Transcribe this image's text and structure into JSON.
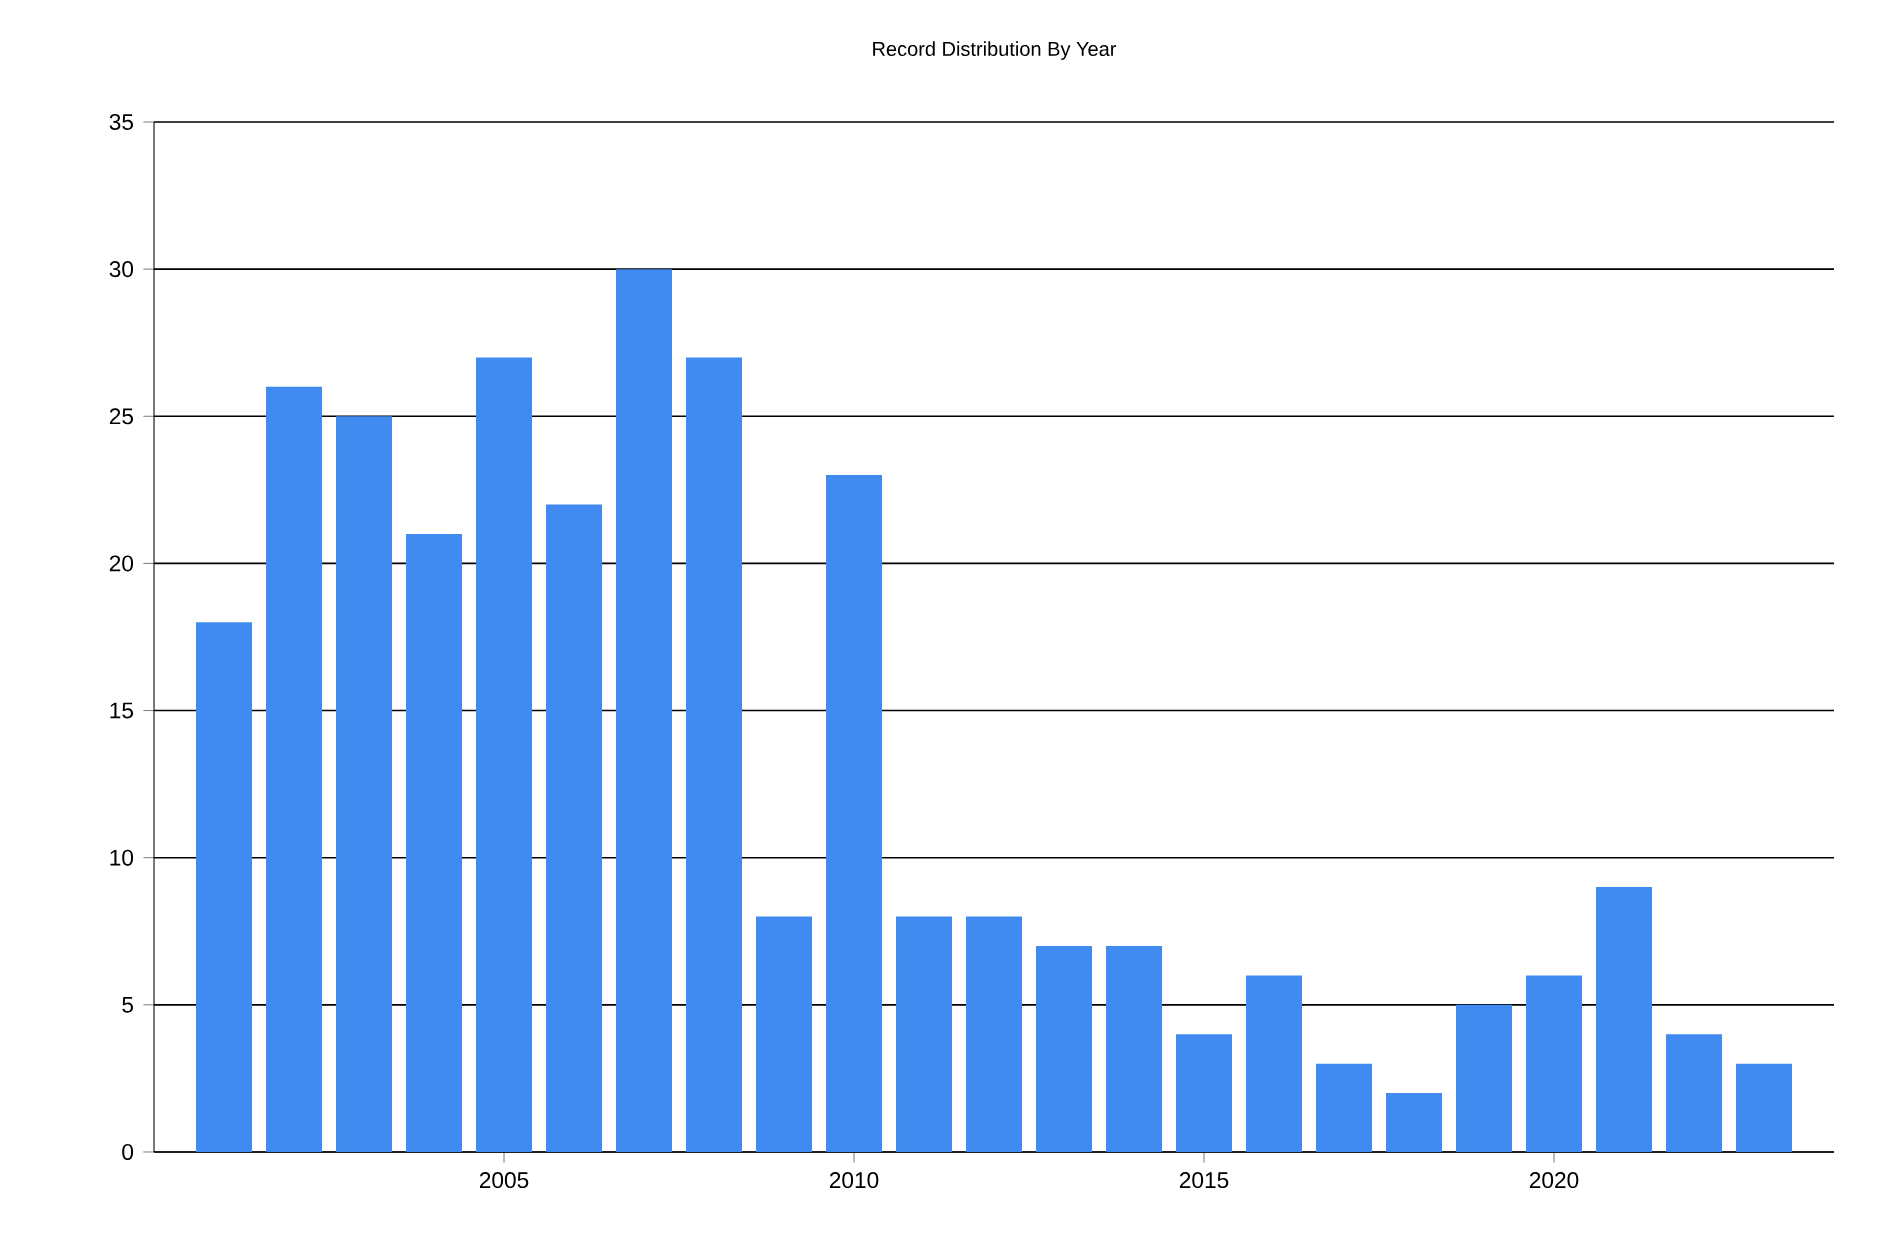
{
  "chart_data": {
    "type": "bar",
    "title": "Record Distribution By Year",
    "x": [
      2001,
      2002,
      2003,
      2004,
      2005,
      2006,
      2007,
      2008,
      2009,
      2010,
      2011,
      2012,
      2013,
      2014,
      2015,
      2016,
      2017,
      2018,
      2019,
      2020,
      2021,
      2022,
      2023
    ],
    "values": [
      18,
      26,
      25,
      21,
      27,
      22,
      30,
      27,
      8,
      23,
      8,
      8,
      7,
      7,
      4,
      6,
      3,
      2,
      5,
      6,
      9,
      4,
      3
    ],
    "color": "#418bf0",
    "xlim": [
      2000,
      2024
    ],
    "xticks": [
      2005,
      2010,
      2015,
      2020
    ],
    "ylim": [
      0,
      35
    ],
    "yticks": [
      0,
      5,
      10,
      15,
      20,
      25,
      30,
      35
    ],
    "grid": "y"
  }
}
